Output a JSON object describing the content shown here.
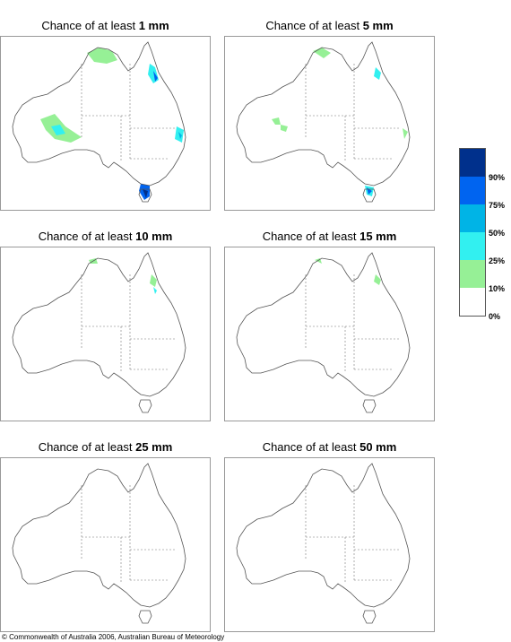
{
  "panels": [
    {
      "prefix": "Chance of at least ",
      "amount": "1 mm"
    },
    {
      "prefix": "Chance of at least ",
      "amount": "5 mm"
    },
    {
      "prefix": "Chance of at least ",
      "amount": "10 mm"
    },
    {
      "prefix": "Chance of at least ",
      "amount": "15 mm"
    },
    {
      "prefix": "Chance of at least ",
      "amount": "25 mm"
    },
    {
      "prefix": "Chance of at least ",
      "amount": "50 mm"
    }
  ],
  "legend": {
    "labels": [
      "90%",
      "75%",
      "50%",
      "25%",
      "10%",
      "0%"
    ],
    "colors": [
      "#00308c",
      "#0064f0",
      "#00b4e6",
      "#32f0f0",
      "#96f096",
      "#ffffff"
    ]
  },
  "copyright": "© Commonwealth of Australia 2006, Australian Bureau of Meteorology"
}
